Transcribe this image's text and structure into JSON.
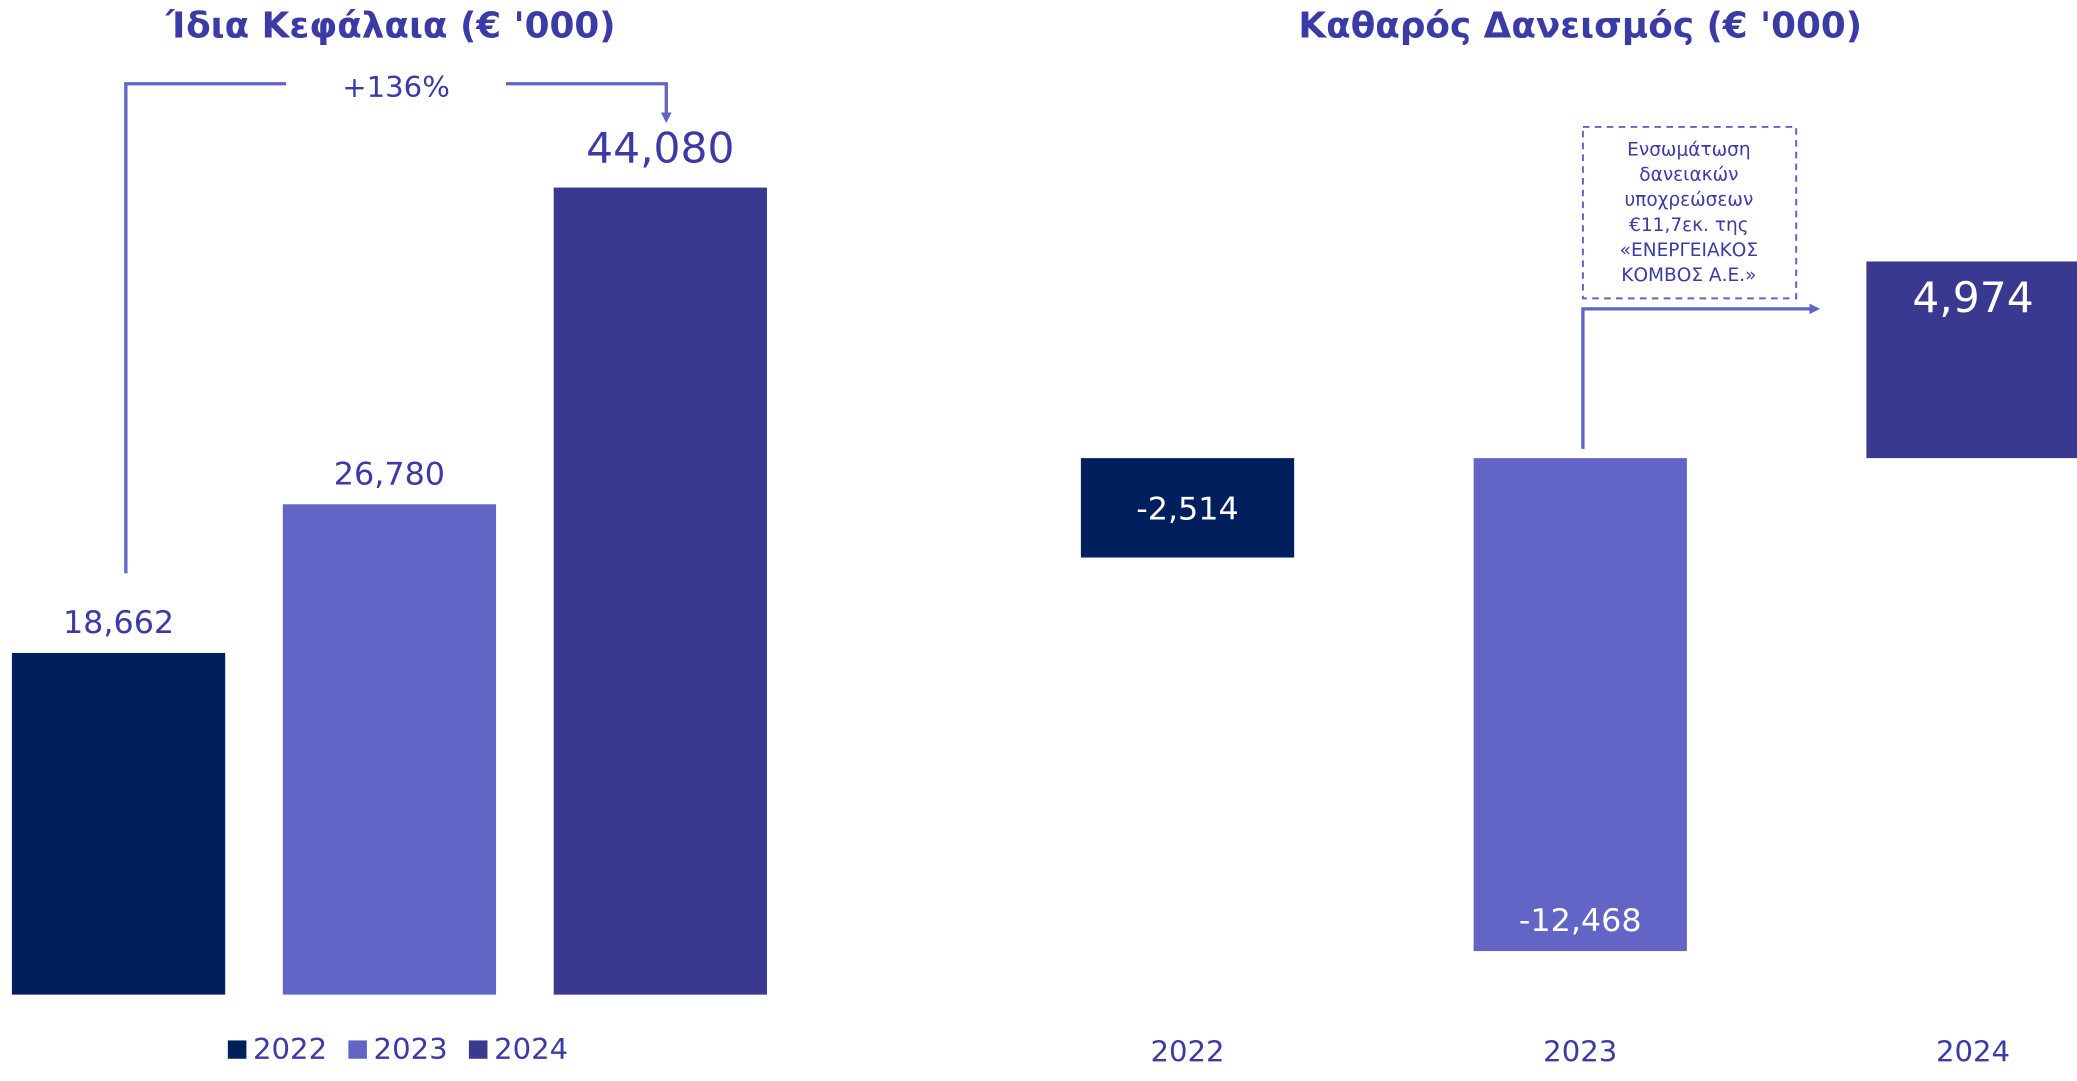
{
  "chart_data": [
    {
      "type": "bar",
      "title": "Ίδια Κεφάλαια (€ '000)",
      "categories": [
        "2022",
        "2023",
        "2024"
      ],
      "values": [
        18662,
        26780,
        44080
      ],
      "value_labels": [
        "18,662",
        "26,780",
        "44,080"
      ],
      "colors": [
        "#001f5c",
        "#6264c6",
        "#39398f"
      ],
      "ylim": [
        0,
        50000
      ],
      "label_position": "outside",
      "legend": "bottom",
      "annotation": "+136%"
    },
    {
      "type": "bar",
      "title": "Καθαρός Δανεισμός (€ '000)",
      "categories": [
        "2022",
        "2023",
        "2024"
      ],
      "values": [
        -2514,
        -12468,
        4974
      ],
      "value_labels": [
        "-2,514",
        "-12,468",
        "4,974"
      ],
      "colors": [
        "#001f5c",
        "#6264c6",
        "#39398f"
      ],
      "ylim": [
        -14000,
        6000
      ],
      "label_position": "inside",
      "legend": null,
      "annotation": [
        "Ενσωμάτωση",
        "δανειακών",
        "υποχρεώσεων",
        "€11,7εκ. της",
        "«ΕΝΕΡΓΕΙΑΚΟΣ",
        "ΚΟΜΒΟΣ Α.Ε.»"
      ]
    }
  ]
}
